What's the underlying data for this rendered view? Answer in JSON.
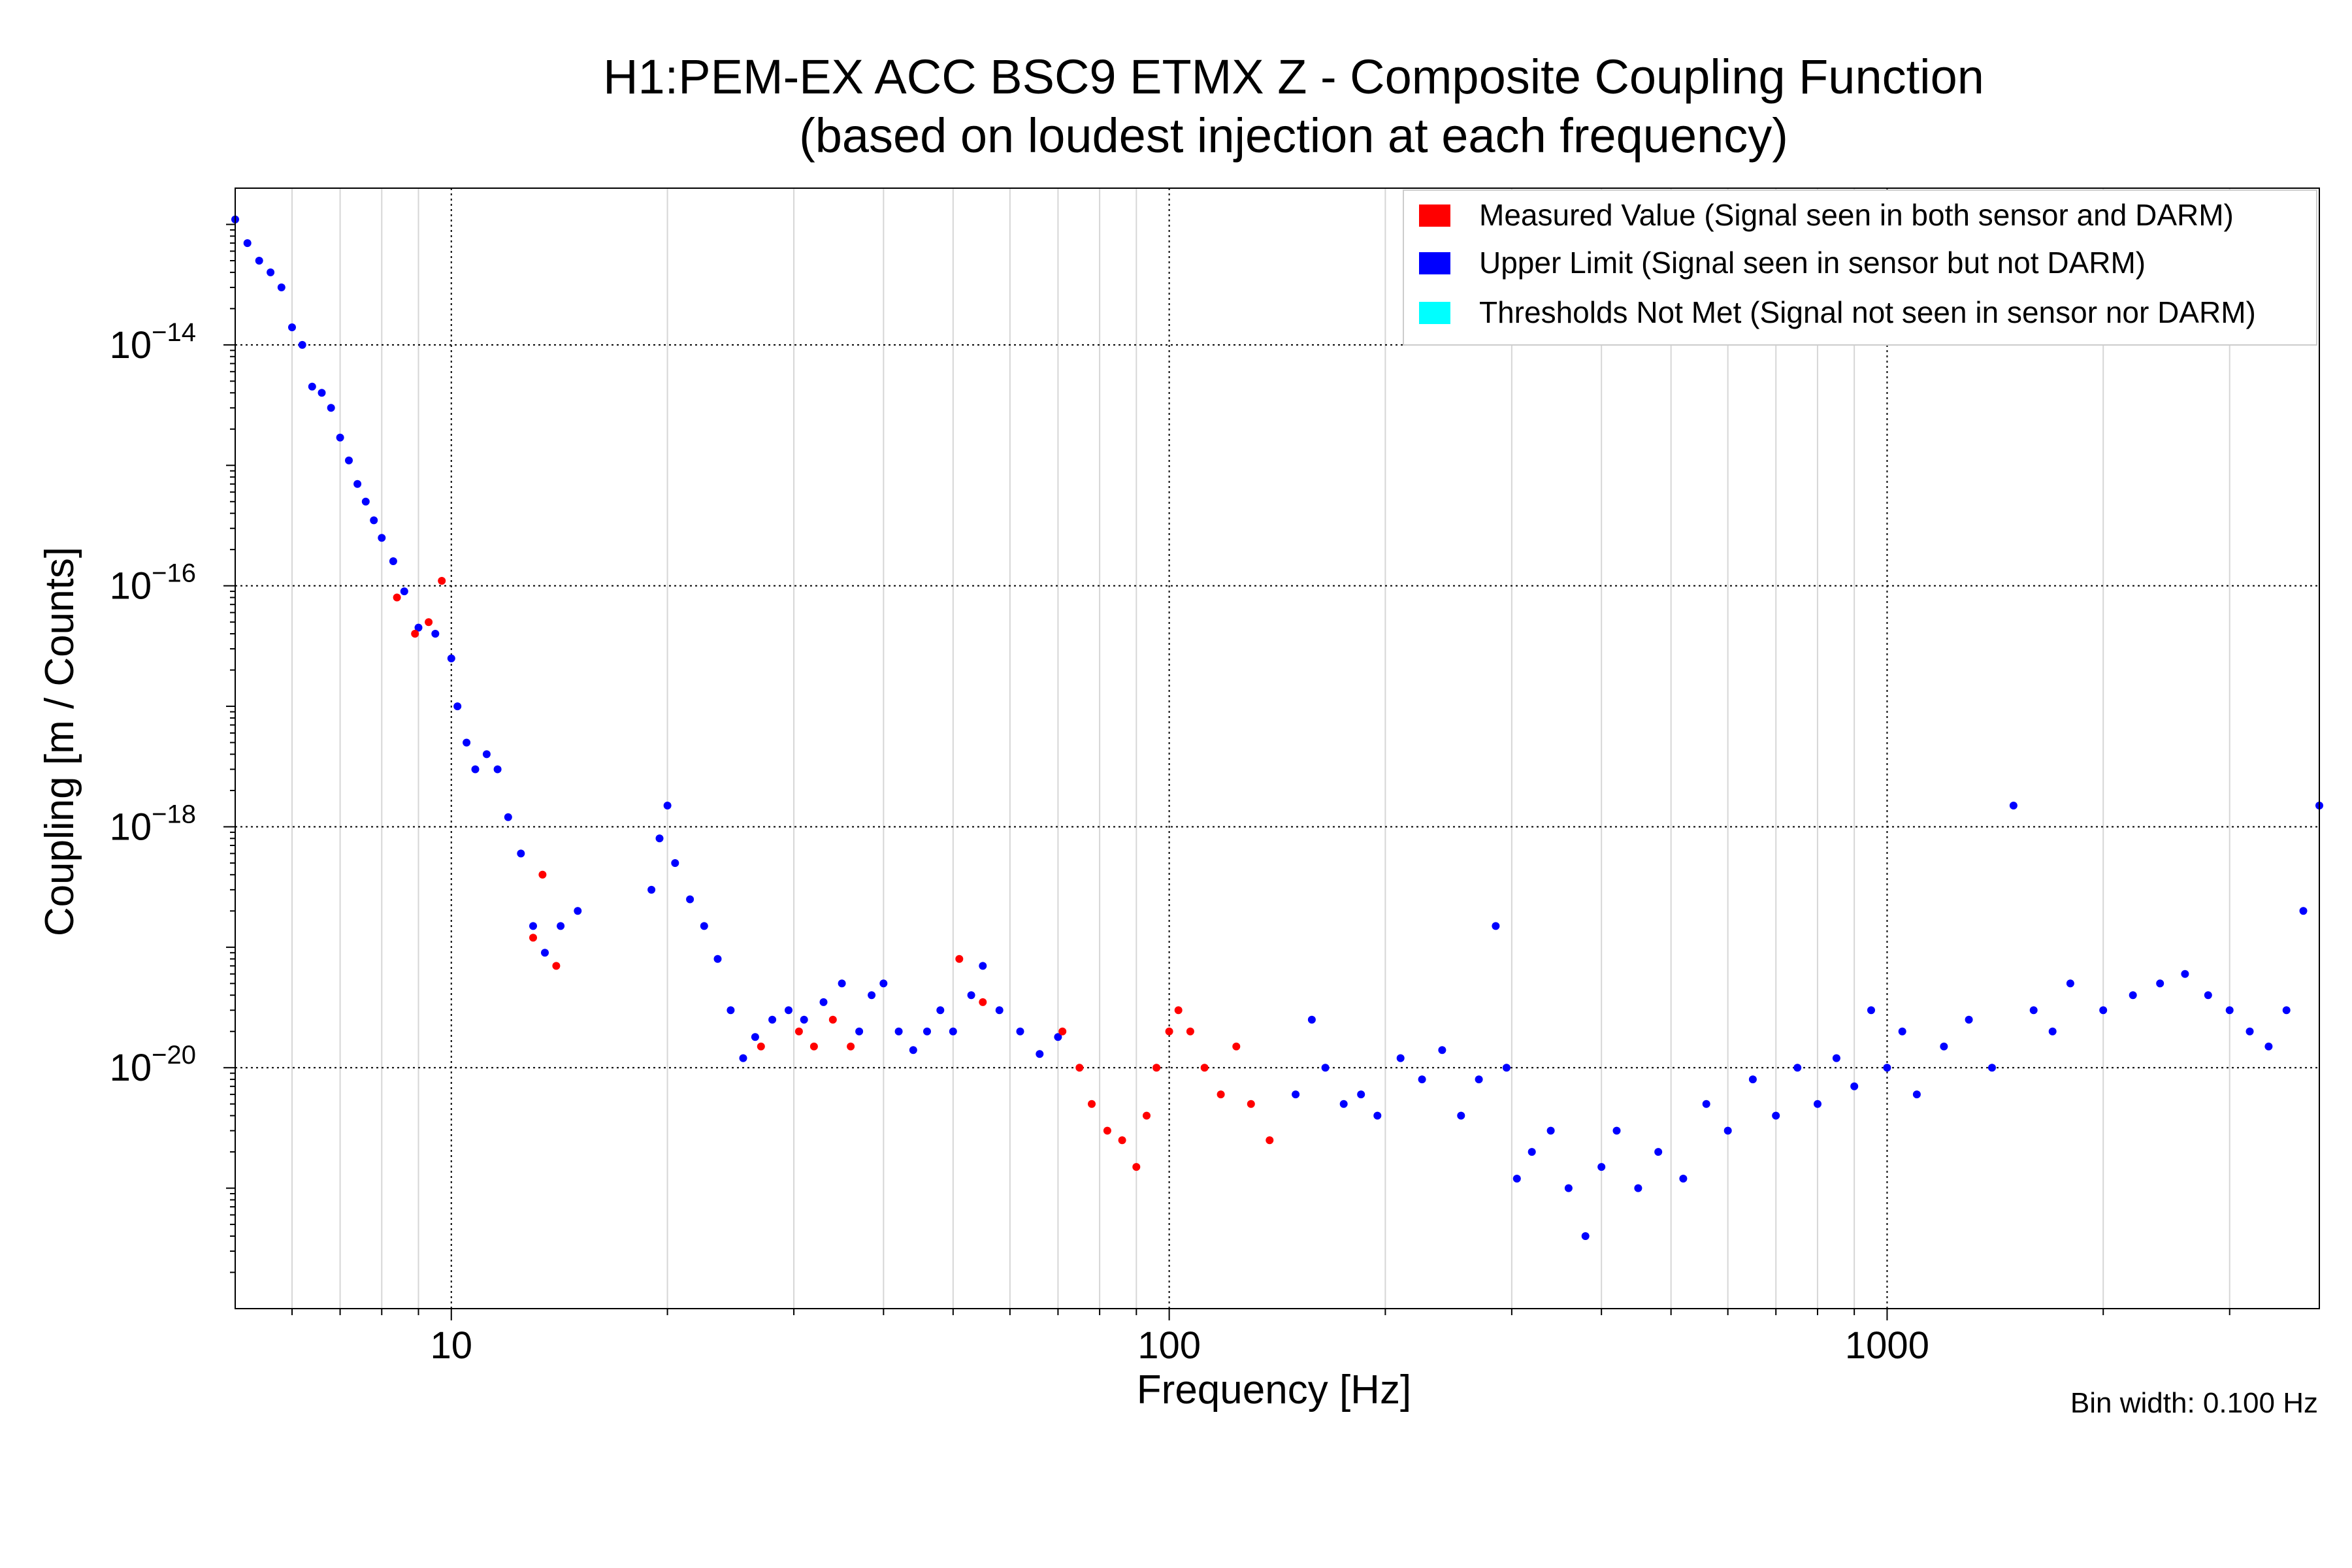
{
  "chart_data": {
    "type": "scatter",
    "title": [
      "H1:PEM-EX ACC BSC9 ETMX Z - Composite Coupling Function",
      "(based on loudest injection at each frequency)"
    ],
    "xlabel": "Frequency [Hz]",
    "ylabel": "Coupling [m / Counts]",
    "x_scale": "log",
    "y_scale": "log",
    "xlim": [
      5,
      4000
    ],
    "ylim": [
      1e-22,
      2e-13
    ],
    "x_ticks": [
      {
        "value": 10,
        "label": "10"
      },
      {
        "value": 100,
        "label": "100"
      },
      {
        "value": 1000,
        "label": "1000"
      }
    ],
    "y_ticks": [
      {
        "value": 1e-14,
        "base": "10",
        "exp": "−14"
      },
      {
        "value": 1e-16,
        "base": "10",
        "exp": "−16"
      },
      {
        "value": 1e-18,
        "base": "10",
        "exp": "−18"
      },
      {
        "value": 1e-20,
        "base": "10",
        "exp": "−20"
      }
    ],
    "grid": true,
    "legend_position": "top-right",
    "legend": [
      {
        "label": "Measured Value (Signal seen in both sensor and DARM)",
        "color": "#ff0000"
      },
      {
        "label": "Upper Limit (Signal seen in sensor but not DARM)",
        "color": "#0000ff"
      },
      {
        "label": "Thresholds Not Met (Signal not seen in sensor nor DARM)",
        "color": "#00ffff"
      }
    ],
    "annotation": "Bin width: 0.100 Hz",
    "series": [
      {
        "name": "Upper Limit (Signal seen in sensor but not DARM)",
        "color": "#0000ff",
        "points": [
          [
            5.0,
            1.1e-13
          ],
          [
            5.2,
            7e-14
          ],
          [
            5.4,
            5e-14
          ],
          [
            5.6,
            4e-14
          ],
          [
            5.8,
            3e-14
          ],
          [
            6.0,
            1.4e-14
          ],
          [
            6.2,
            1e-14
          ],
          [
            6.4,
            4.5e-15
          ],
          [
            6.6,
            4e-15
          ],
          [
            6.8,
            3e-15
          ],
          [
            7.0,
            1.7e-15
          ],
          [
            7.2,
            1.1e-15
          ],
          [
            7.4,
            7e-16
          ],
          [
            7.6,
            5e-16
          ],
          [
            7.8,
            3.5e-16
          ],
          [
            8.0,
            2.5e-16
          ],
          [
            8.3,
            1.6e-16
          ],
          [
            8.6,
            9e-17
          ],
          [
            9.0,
            4.5e-17
          ],
          [
            9.5,
            4e-17
          ],
          [
            10.0,
            2.5e-17
          ],
          [
            10.2,
            1e-17
          ],
          [
            10.5,
            5e-18
          ],
          [
            10.8,
            3e-18
          ],
          [
            11.2,
            4e-18
          ],
          [
            11.6,
            3e-18
          ],
          [
            12.0,
            1.2e-18
          ],
          [
            12.5,
            6e-19
          ],
          [
            13.0,
            1.5e-19
          ],
          [
            13.5,
            9e-20
          ],
          [
            14.2,
            1.5e-19
          ],
          [
            15.0,
            2e-19
          ],
          [
            19.0,
            3e-19
          ],
          [
            19.5,
            8e-19
          ],
          [
            20.0,
            1.5e-18
          ],
          [
            20.5,
            5e-19
          ],
          [
            21.5,
            2.5e-19
          ],
          [
            22.5,
            1.5e-19
          ],
          [
            23.5,
            8e-20
          ],
          [
            24.5,
            3e-20
          ],
          [
            25.5,
            1.2e-20
          ],
          [
            26.5,
            1.8e-20
          ],
          [
            28.0,
            2.5e-20
          ],
          [
            29.5,
            3e-20
          ],
          [
            31.0,
            2.5e-20
          ],
          [
            33.0,
            3.5e-20
          ],
          [
            35.0,
            5e-20
          ],
          [
            37.0,
            2e-20
          ],
          [
            38.5,
            4e-20
          ],
          [
            40.0,
            5e-20
          ],
          [
            42.0,
            2e-20
          ],
          [
            44.0,
            1.4e-20
          ],
          [
            46.0,
            2e-20
          ],
          [
            48.0,
            3e-20
          ],
          [
            50.0,
            2e-20
          ],
          [
            53.0,
            4e-20
          ],
          [
            55.0,
            7e-20
          ],
          [
            58.0,
            3e-20
          ],
          [
            62.0,
            2e-20
          ],
          [
            66.0,
            1.3e-20
          ],
          [
            70.0,
            1.8e-20
          ],
          [
            150.0,
            6e-21
          ],
          [
            158.0,
            2.5e-20
          ],
          [
            165.0,
            1e-20
          ],
          [
            175.0,
            5e-21
          ],
          [
            185.0,
            6e-21
          ],
          [
            195.0,
            4e-21
          ],
          [
            210.0,
            1.2e-20
          ],
          [
            225.0,
            8e-21
          ],
          [
            240.0,
            1.4e-20
          ],
          [
            255.0,
            4e-21
          ],
          [
            270.0,
            8e-21
          ],
          [
            285.0,
            1.5e-19
          ],
          [
            295.0,
            1e-20
          ],
          [
            305.0,
            1.2e-21
          ],
          [
            320.0,
            2e-21
          ],
          [
            340.0,
            3e-21
          ],
          [
            360.0,
            1e-21
          ],
          [
            380.0,
            4e-22
          ],
          [
            400.0,
            1.5e-21
          ],
          [
            420.0,
            3e-21
          ],
          [
            450.0,
            1e-21
          ],
          [
            480.0,
            2e-21
          ],
          [
            520.0,
            1.2e-21
          ],
          [
            560.0,
            5e-21
          ],
          [
            600.0,
            3e-21
          ],
          [
            650.0,
            8e-21
          ],
          [
            700.0,
            4e-21
          ],
          [
            750.0,
            1e-20
          ],
          [
            800.0,
            5e-21
          ],
          [
            850.0,
            1.2e-20
          ],
          [
            900.0,
            7e-21
          ],
          [
            950.0,
            3e-20
          ],
          [
            1000.0,
            1e-20
          ],
          [
            1050.0,
            2e-20
          ],
          [
            1100.0,
            6e-21
          ],
          [
            1200.0,
            1.5e-20
          ],
          [
            1300.0,
            2.5e-20
          ],
          [
            1400.0,
            1e-20
          ],
          [
            1500.0,
            1.5e-18
          ],
          [
            1600.0,
            3e-20
          ],
          [
            1700.0,
            2e-20
          ],
          [
            1800.0,
            5e-20
          ],
          [
            2000.0,
            3e-20
          ],
          [
            2200.0,
            4e-20
          ],
          [
            2400.0,
            5e-20
          ],
          [
            2600.0,
            6e-20
          ],
          [
            2800.0,
            4e-20
          ],
          [
            3000.0,
            3e-20
          ],
          [
            3200.0,
            2e-20
          ],
          [
            3400.0,
            1.5e-20
          ],
          [
            3600.0,
            3e-20
          ],
          [
            3800.0,
            2e-19
          ],
          [
            4000.0,
            1.5e-18
          ]
        ]
      },
      {
        "name": "Measured Value (Signal seen in both sensor and DARM)",
        "color": "#ff0000",
        "points": [
          [
            8.4,
            8e-17
          ],
          [
            8.9,
            4e-17
          ],
          [
            9.3,
            5e-17
          ],
          [
            9.7,
            1.1e-16
          ],
          [
            13.0,
            1.2e-19
          ],
          [
            13.4,
            4e-19
          ],
          [
            14.0,
            7e-20
          ],
          [
            27.0,
            1.5e-20
          ],
          [
            30.5,
            2e-20
          ],
          [
            32.0,
            1.5e-20
          ],
          [
            34.0,
            2.5e-20
          ],
          [
            36.0,
            1.5e-20
          ],
          [
            51.0,
            8e-20
          ],
          [
            55.0,
            3.5e-20
          ],
          [
            71.0,
            2e-20
          ],
          [
            75.0,
            1e-20
          ],
          [
            78.0,
            5e-21
          ],
          [
            82.0,
            3e-21
          ],
          [
            86.0,
            2.5e-21
          ],
          [
            90.0,
            1.5e-21
          ],
          [
            93.0,
            4e-21
          ],
          [
            96.0,
            1e-20
          ],
          [
            100.0,
            2e-20
          ],
          [
            103.0,
            3e-20
          ],
          [
            107.0,
            2e-20
          ],
          [
            112.0,
            1e-20
          ],
          [
            118.0,
            6e-21
          ],
          [
            124.0,
            1.5e-20
          ],
          [
            130.0,
            5e-21
          ],
          [
            138.0,
            2.5e-21
          ]
        ]
      }
    ]
  }
}
